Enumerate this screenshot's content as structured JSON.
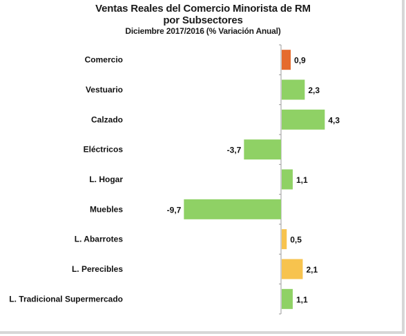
{
  "chart_data": {
    "type": "bar",
    "orientation": "horizontal",
    "title": "Ventas Reales del Comercio Minorista de RM",
    "title_line2": "por Subsectores",
    "subtitle": "Diciembre 2017/2016 (% Variación Anual)",
    "categories": [
      "Comercio",
      "Vestuario",
      "Calzado",
      "Eléctricos",
      "L. Hogar",
      "Muebles",
      "L. Abarrotes",
      "L. Perecibles",
      "L. Tradicional Supermercado"
    ],
    "values": [
      0.9,
      2.3,
      4.3,
      -3.7,
      1.1,
      -9.7,
      0.5,
      2.1,
      1.1
    ],
    "value_labels": [
      "0,9",
      "2,3",
      "4,3",
      "-3,7",
      "1,1",
      "-9,7",
      "0,5",
      "2,1",
      "1,1"
    ],
    "colors": [
      "#e56b2e",
      "#8fd165",
      "#8fd165",
      "#8fd165",
      "#8fd165",
      "#8fd165",
      "#f7c34e",
      "#f7c34e",
      "#8fd165"
    ],
    "xlim": [
      -10,
      5
    ],
    "grid": false,
    "legend": "none"
  }
}
